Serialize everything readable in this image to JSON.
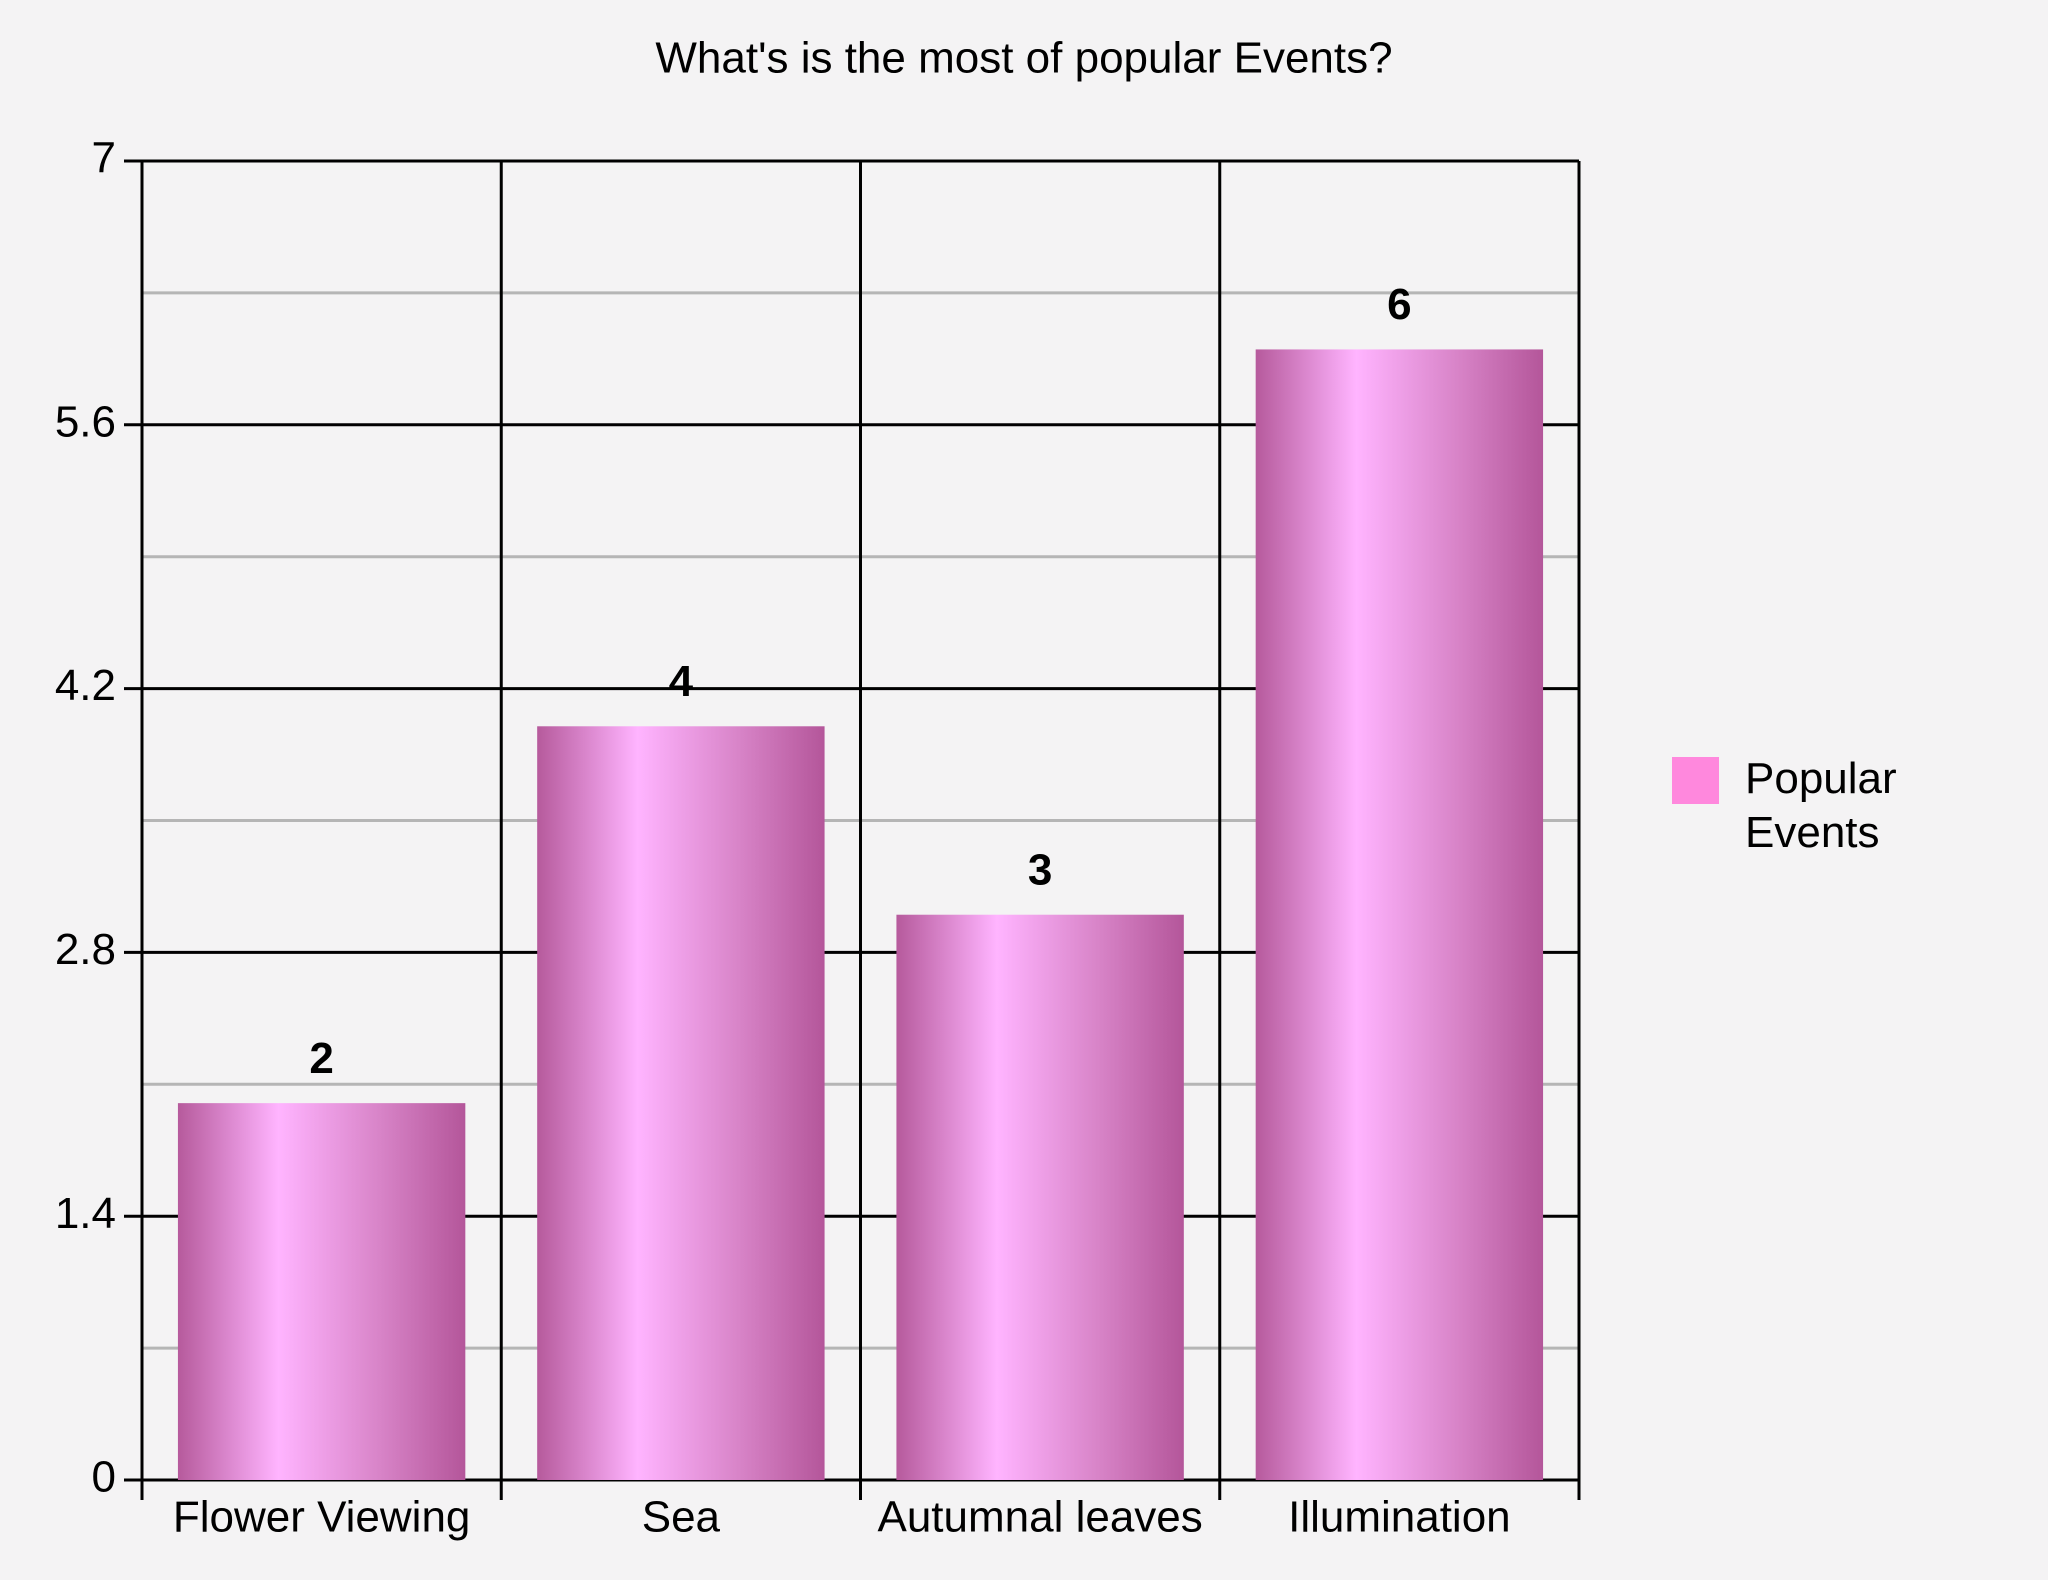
{
  "chart_data": {
    "type": "bar",
    "title": "What's is the most of popular Events?",
    "categories": [
      "Flower Viewing",
      "Sea",
      "Autumnal leaves",
      "Illumination"
    ],
    "series": [
      {
        "name": "Popular Events",
        "color": "#ff88dd",
        "values": [
          2,
          4,
          3,
          6
        ]
      }
    ],
    "ylim": [
      0,
      7
    ],
    "yticks": [
      0,
      1.4,
      2.8,
      4.2,
      5.6,
      7
    ],
    "grid": true,
    "legend": "right"
  }
}
